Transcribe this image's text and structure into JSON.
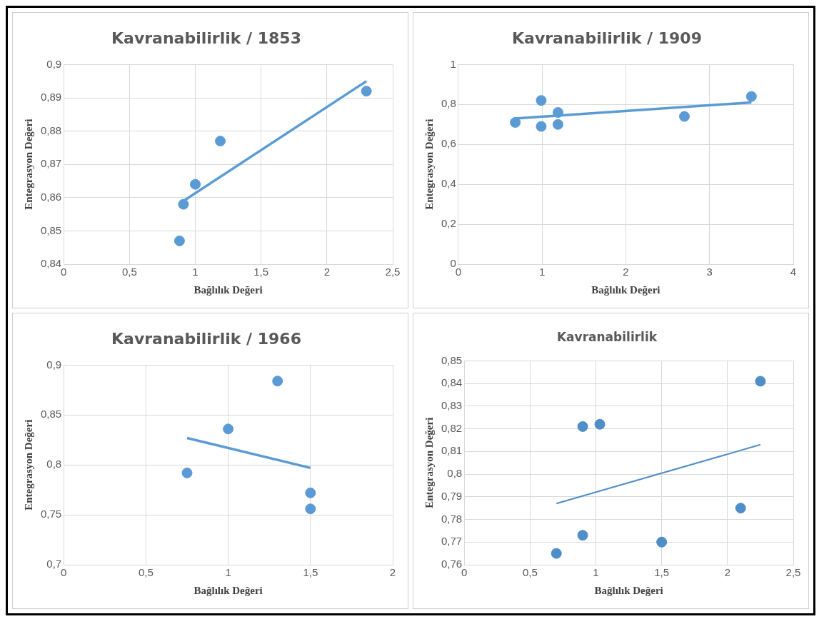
{
  "chart_data": [
    {
      "type": "scatter",
      "title": "Kavranabilirlik / 1853",
      "xlabel": "Bağlılık Değeri",
      "ylabel": "Entegrasyon Değeri",
      "xlim": [
        0,
        2.5
      ],
      "xticks": [
        0,
        {
          "value": 0.5,
          "label": "0,5"
        },
        1,
        {
          "value": 1.5,
          "label": "1,5"
        },
        2,
        {
          "value": 2.5,
          "label": "2,5"
        }
      ],
      "ylim": [
        0.84,
        0.9
      ],
      "yticks": [
        {
          "value": 0.84,
          "label": "0,84"
        },
        {
          "value": 0.85,
          "label": "0,85"
        },
        {
          "value": 0.86,
          "label": "0,86"
        },
        {
          "value": 0.87,
          "label": "0,87"
        },
        {
          "value": 0.88,
          "label": "0,88"
        },
        {
          "value": 0.89,
          "label": "0,89"
        },
        {
          "value": 0.9,
          "label": "0,9"
        }
      ],
      "grid": true,
      "series": [
        {
          "type": "scatter",
          "color": "#5b9bd5",
          "marker": "circle",
          "x": [
            0.88,
            0.91,
            1.0,
            1.19,
            2.3
          ],
          "values": [
            0.847,
            0.858,
            0.864,
            0.877,
            0.892
          ]
        },
        {
          "type": "line",
          "color": "#5b9bd5",
          "marker": "none",
          "x": [
            0.91,
            2.3
          ],
          "values": [
            0.859,
            0.895
          ]
        }
      ]
    },
    {
      "type": "scatter",
      "title": "Kavranabilirlik / 1909",
      "xlabel": "Bağlılık Değeri",
      "ylabel": "Entegrasyon Değeri",
      "xlim": [
        0,
        4
      ],
      "xticks": [
        0,
        1,
        2,
        3,
        4
      ],
      "ylim": [
        0,
        1
      ],
      "yticks": [
        0,
        {
          "value": 0.2,
          "label": "0,2"
        },
        {
          "value": 0.4,
          "label": "0,4"
        },
        {
          "value": 0.6,
          "label": "0,6"
        },
        {
          "value": 0.8,
          "label": "0,8"
        },
        1
      ],
      "grid": true,
      "series": [
        {
          "type": "scatter",
          "color": "#5b9bd5",
          "marker": "circle",
          "x": [
            0.68,
            0.99,
            0.99,
            1.19,
            1.19,
            2.7,
            3.5
          ],
          "values": [
            0.71,
            0.82,
            0.69,
            0.76,
            0.7,
            0.74,
            0.84
          ]
        },
        {
          "type": "line",
          "color": "#5b9bd5",
          "marker": "none",
          "x": [
            0.68,
            3.5
          ],
          "values": [
            0.73,
            0.81
          ]
        }
      ]
    },
    {
      "type": "scatter",
      "title": "Kavranabilirlik / 1966",
      "xlabel": "Bağlılık Değeri",
      "ylabel": "Entegrasyon Değeri",
      "xlim": [
        0,
        2
      ],
      "xticks": [
        0,
        {
          "value": 0.5,
          "label": "0,5"
        },
        1,
        {
          "value": 1.5,
          "label": "1,5"
        },
        2
      ],
      "ylim": [
        0.7,
        0.9
      ],
      "yticks": [
        {
          "value": 0.7,
          "label": "0,7"
        },
        {
          "value": 0.75,
          "label": "0,75"
        },
        {
          "value": 0.8,
          "label": "0,8"
        },
        {
          "value": 0.85,
          "label": "0,85"
        },
        {
          "value": 0.9,
          "label": "0,9"
        }
      ],
      "grid": true,
      "series": [
        {
          "type": "scatter",
          "color": "#5b9bd5",
          "marker": "circle",
          "x": [
            0.75,
            1.0,
            1.3,
            1.5,
            1.5
          ],
          "values": [
            0.792,
            0.836,
            0.884,
            0.772,
            0.756
          ]
        },
        {
          "type": "line",
          "color": "#5b9bd5",
          "marker": "none",
          "x": [
            0.75,
            1.5
          ],
          "values": [
            0.827,
            0.797
          ]
        }
      ]
    },
    {
      "type": "scatter",
      "title": "Kavranabilirlik",
      "xlabel": "Bağlılık Değeri",
      "ylabel": "Entegrasyon Değeri",
      "xlim": [
        0,
        2.5
      ],
      "xticks": [
        0,
        {
          "value": 0.5,
          "label": "0,5"
        },
        1,
        {
          "value": 1.5,
          "label": "1,5"
        },
        2,
        {
          "value": 2.5,
          "label": "2,5"
        }
      ],
      "ylim": [
        0.76,
        0.85
      ],
      "yticks": [
        {
          "value": 0.76,
          "label": "0,76"
        },
        {
          "value": 0.77,
          "label": "0,77"
        },
        {
          "value": 0.78,
          "label": "0,78"
        },
        {
          "value": 0.79,
          "label": "0,79"
        },
        {
          "value": 0.8,
          "label": "0,8"
        },
        {
          "value": 0.81,
          "label": "0,81"
        },
        {
          "value": 0.82,
          "label": "0,82"
        },
        {
          "value": 0.83,
          "label": "0,83"
        },
        {
          "value": 0.84,
          "label": "0,84"
        },
        {
          "value": 0.85,
          "label": "0,85"
        }
      ],
      "grid": true,
      "series": [
        {
          "type": "scatter",
          "color": "#4f8ec9",
          "marker": "circle",
          "x": [
            0.7,
            0.9,
            0.9,
            1.03,
            1.5,
            2.1,
            2.25
          ],
          "values": [
            0.765,
            0.773,
            0.821,
            0.822,
            0.77,
            0.785,
            0.841
          ]
        },
        {
          "type": "line",
          "color": "#4f8ec9",
          "marker": "none",
          "x": [
            0.7,
            2.25
          ],
          "values": [
            0.787,
            0.813
          ]
        }
      ]
    }
  ]
}
